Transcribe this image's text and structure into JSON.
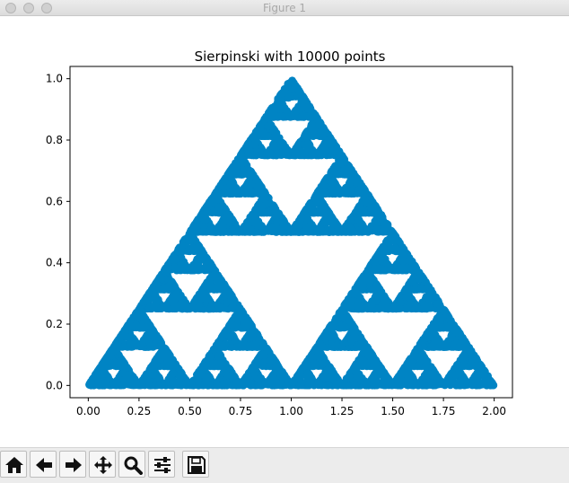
{
  "window": {
    "title": "Figure 1"
  },
  "chart_data": {
    "type": "scatter",
    "title": "Sierpinski with 10000 points",
    "xlabel": "",
    "ylabel": "",
    "xlim": [
      -0.09,
      2.09
    ],
    "ylim": [
      -0.04,
      1.04
    ],
    "x_ticks": [
      0.0,
      0.25,
      0.5,
      0.75,
      1.0,
      1.25,
      1.5,
      1.75,
      2.0
    ],
    "x_tick_labels": [
      "0.00",
      "0.25",
      "0.50",
      "0.75",
      "1.00",
      "1.25",
      "1.50",
      "1.75",
      "2.00"
    ],
    "y_ticks": [
      0.0,
      0.2,
      0.4,
      0.6,
      0.8,
      1.0
    ],
    "y_tick_labels": [
      "0.0",
      "0.2",
      "0.4",
      "0.6",
      "0.8",
      "1.0"
    ],
    "vertices": [
      [
        0,
        0
      ],
      [
        2,
        0
      ],
      [
        1,
        1
      ]
    ],
    "point_count": 10000,
    "grid": false,
    "legend": "none",
    "marker_color": "#0084c4"
  },
  "toolbar": {
    "buttons": [
      {
        "name": "home-button",
        "icon": "home-icon"
      },
      {
        "name": "back-button",
        "icon": "arrow-left-icon"
      },
      {
        "name": "forward-button",
        "icon": "arrow-right-icon"
      },
      {
        "name": "pan-button",
        "icon": "move-icon"
      },
      {
        "name": "zoom-button",
        "icon": "zoom-icon"
      },
      {
        "name": "configure-subplots-button",
        "icon": "sliders-icon"
      },
      {
        "name": "save-button",
        "icon": "save-icon"
      }
    ]
  },
  "status": {
    "text": ""
  }
}
